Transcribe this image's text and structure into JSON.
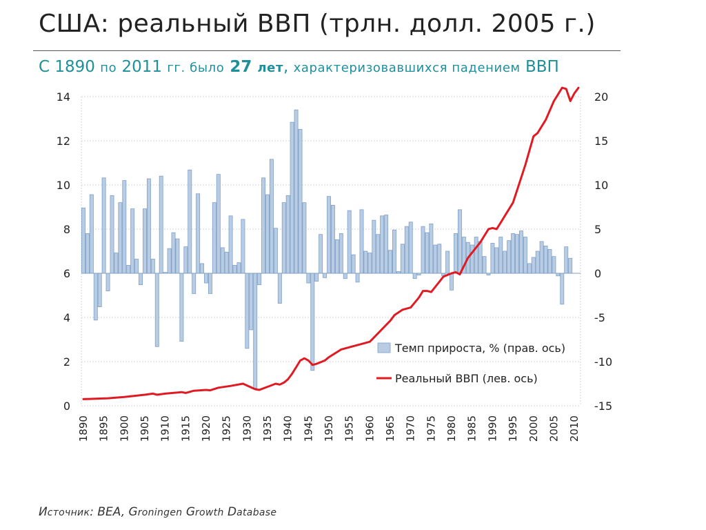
{
  "title": "США: реальный ВВП (трлн. долл. 2005 г.)",
  "subtitle": {
    "p1": "С 1890 ",
    "p2": "по",
    "p3": " 2011 ",
    "p4": "гг. было",
    "p5": " 27 ",
    "p6": "лет",
    "p7": ", ",
    "p8": "характеризовавшихся падением",
    "p9": " ВВП"
  },
  "source": {
    "p1": "И",
    "p2": "сточник",
    "p3": ": BEA, G",
    "p4": "roningen",
    "p5": " G",
    "p6": "rowth",
    "p7": " D",
    "p8": "atabase"
  },
  "colors": {
    "bar_fill": "#b8cde4",
    "bar_stroke": "#7f9fc6",
    "line": "#e01a22",
    "grid": "#d4d4d4",
    "title": "#222222",
    "subtitle": "#1f8f9a"
  },
  "chart_data": {
    "type": "bar+line",
    "x_start": 1890,
    "x_end": 2011,
    "x_tick_labels": [
      "1890",
      "1895",
      "1900",
      "1905",
      "1910",
      "1915",
      "1920",
      "1925",
      "1930",
      "1935",
      "1940",
      "1945",
      "1950",
      "1955",
      "1960",
      "1965",
      "1970",
      "1975",
      "1980",
      "1985",
      "1990",
      "1995",
      "2000",
      "2005",
      "2010"
    ],
    "y_left": {
      "min": 0,
      "max": 14,
      "ticks": [
        "0",
        "2",
        "4",
        "6",
        "8",
        "10",
        "12",
        "14"
      ]
    },
    "y_right": {
      "min": -15,
      "max": 20,
      "ticks": [
        "-15",
        "-10",
        "-5",
        "0",
        "5",
        "10",
        "15",
        "20"
      ]
    },
    "grid": true,
    "legend_position": "lower-right",
    "series": [
      {
        "name": "Темп прироста, % (прав. ось)",
        "type": "bar",
        "axis": "right",
        "values": [
          7.4,
          4.5,
          8.9,
          -5.3,
          -3.8,
          10.8,
          -2.0,
          8.8,
          2.3,
          8.0,
          10.5,
          0.9,
          7.3,
          1.6,
          -1.3,
          7.3,
          10.7,
          1.6,
          -8.3,
          11.0,
          0.1,
          2.8,
          4.6,
          3.9,
          -7.7,
          3.0,
          11.7,
          -2.3,
          9.0,
          1.1,
          -1.1,
          -2.3,
          8.0,
          11.2,
          2.9,
          2.4,
          6.5,
          0.9,
          1.2,
          6.1,
          -8.5,
          -6.4,
          -13.0,
          -1.3,
          10.8,
          8.9,
          12.9,
          5.1,
          -3.4,
          8.0,
          8.8,
          17.1,
          18.5,
          16.3,
          8.0,
          -1.1,
          -11.0,
          -0.9,
          4.4,
          -0.5,
          8.7,
          7.7,
          3.8,
          4.5,
          -0.6,
          7.1,
          2.1,
          -1.0,
          7.2,
          2.5,
          2.3,
          6.0,
          4.4,
          6.5,
          6.6,
          2.6,
          4.9,
          0.2,
          3.3,
          5.3,
          5.8,
          -0.6,
          -0.2,
          5.3,
          4.6,
          5.6,
          3.2,
          3.3,
          -0.3,
          2.5,
          -1.9,
          4.5,
          7.2,
          4.1,
          3.5,
          3.2,
          4.1,
          3.6,
          1.9,
          -0.2,
          3.4,
          2.9,
          4.1,
          2.5,
          3.7,
          4.5,
          4.4,
          4.8,
          4.1,
          1.1,
          1.8,
          2.5,
          3.6,
          3.1,
          2.7,
          1.9,
          -0.3,
          -3.5,
          3.0,
          1.7
        ]
      },
      {
        "name": "Реальный ВВП (лев. ось)",
        "type": "line",
        "axis": "left",
        "x": [
          1890,
          1893,
          1896,
          1900,
          1905,
          1907,
          1908,
          1910,
          1914,
          1915,
          1917,
          1920,
          1921,
          1923,
          1926,
          1929,
          1932,
          1933,
          1935,
          1937,
          1938,
          1939,
          1940,
          1941,
          1942,
          1943,
          1944,
          1945,
          1946,
          1947,
          1949,
          1950,
          1953,
          1955,
          1958,
          1960,
          1965,
          1966,
          1968,
          1970,
          1972,
          1973,
          1974,
          1975,
          1978,
          1980,
          1981,
          1982,
          1984,
          1987,
          1989,
          1990,
          1991,
          1992,
          1995,
          1998,
          2000,
          2001,
          2003,
          2005,
          2007,
          2008,
          2009,
          2010,
          2011
        ],
        "y": [
          0.3,
          0.32,
          0.34,
          0.4,
          0.5,
          0.55,
          0.5,
          0.55,
          0.62,
          0.58,
          0.68,
          0.72,
          0.7,
          0.82,
          0.9,
          1.0,
          0.75,
          0.72,
          0.86,
          1.0,
          0.96,
          1.05,
          1.2,
          1.45,
          1.75,
          2.05,
          2.15,
          2.05,
          1.85,
          1.9,
          2.05,
          2.2,
          2.55,
          2.65,
          2.8,
          2.9,
          3.85,
          4.1,
          4.35,
          4.45,
          4.9,
          5.2,
          5.2,
          5.15,
          5.85,
          6.0,
          6.05,
          5.95,
          6.7,
          7.4,
          8.0,
          8.05,
          8.0,
          8.3,
          9.2,
          10.9,
          12.2,
          12.35,
          12.95,
          13.8,
          14.4,
          14.35,
          13.8,
          14.15,
          14.4
        ]
      }
    ]
  }
}
